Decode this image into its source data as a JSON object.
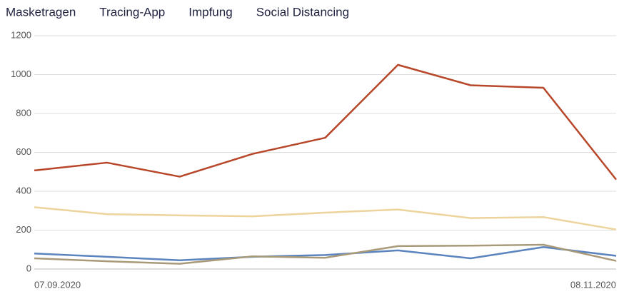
{
  "chart_data": {
    "type": "line",
    "categories": [
      "07.09.2020",
      null,
      null,
      null,
      null,
      null,
      null,
      null,
      "08.11.2020"
    ],
    "series": [
      {
        "name": "Masketragen",
        "color": "#b8472a",
        "values": [
          507,
          547,
          475,
          592,
          675,
          1050,
          945,
          932,
          460
        ]
      },
      {
        "name": "Tracing-App",
        "color": "#ecd49c",
        "values": [
          318,
          282,
          276,
          271,
          290,
          306,
          262,
          267,
          203
        ]
      },
      {
        "name": "Impfung",
        "color": "#5b84bf",
        "values": [
          80,
          63,
          45,
          63,
          72,
          96,
          55,
          113,
          68
        ]
      },
      {
        "name": "Social Distancing",
        "color": "#a89a78",
        "values": [
          55,
          40,
          27,
          65,
          58,
          118,
          120,
          125,
          42
        ]
      }
    ],
    "ylim": [
      0,
      1200
    ],
    "yticks": [
      0,
      200,
      400,
      600,
      800,
      1000,
      1200
    ],
    "grid": true
  }
}
